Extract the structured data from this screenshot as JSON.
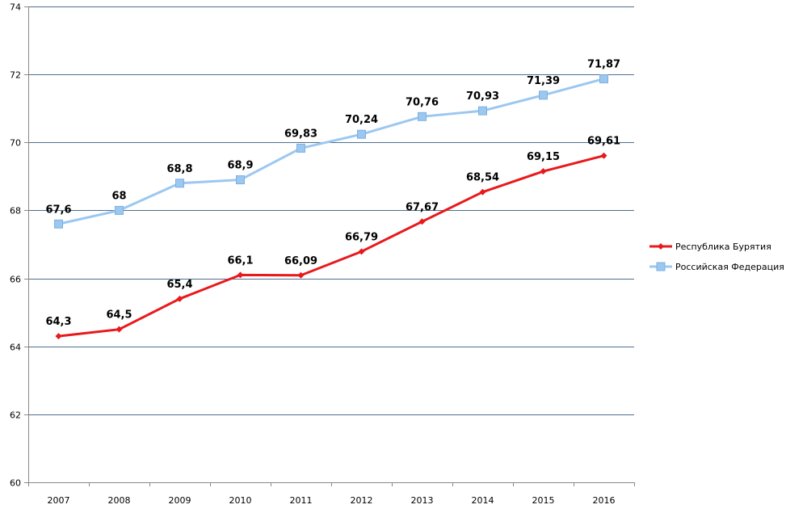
{
  "chart_data": {
    "type": "line",
    "title": "",
    "xlabel": "",
    "ylabel": "",
    "categories": [
      "2007",
      "2008",
      "2009",
      "2010",
      "2011",
      "2012",
      "2013",
      "2014",
      "2015",
      "2016"
    ],
    "ylim": [
      60,
      74
    ],
    "yticks": [
      60,
      62,
      64,
      66,
      68,
      70,
      72,
      74
    ],
    "grid": true,
    "legend_position": "right",
    "series": [
      {
        "name": "Республика Бурятия",
        "color": "#e8191c",
        "marker": "diamond",
        "values": [
          64.3,
          64.5,
          65.4,
          66.1,
          66.09,
          66.79,
          67.67,
          68.54,
          69.15,
          69.61
        ],
        "labels": [
          "64,3",
          "64,5",
          "65,4",
          "66,1",
          "66,09",
          "66,79",
          "67,67",
          "68,54",
          "69,15",
          "69,61"
        ]
      },
      {
        "name": "Российская Федерация",
        "color": "#9bc8f0",
        "marker": "square",
        "values": [
          67.6,
          68,
          68.8,
          68.9,
          69.83,
          70.24,
          70.76,
          70.93,
          71.39,
          71.87
        ],
        "labels": [
          "67,6",
          "68",
          "68,8",
          "68,9",
          "69,83",
          "70,24",
          "70,76",
          "70,93",
          "71,39",
          "71,87"
        ]
      }
    ]
  }
}
